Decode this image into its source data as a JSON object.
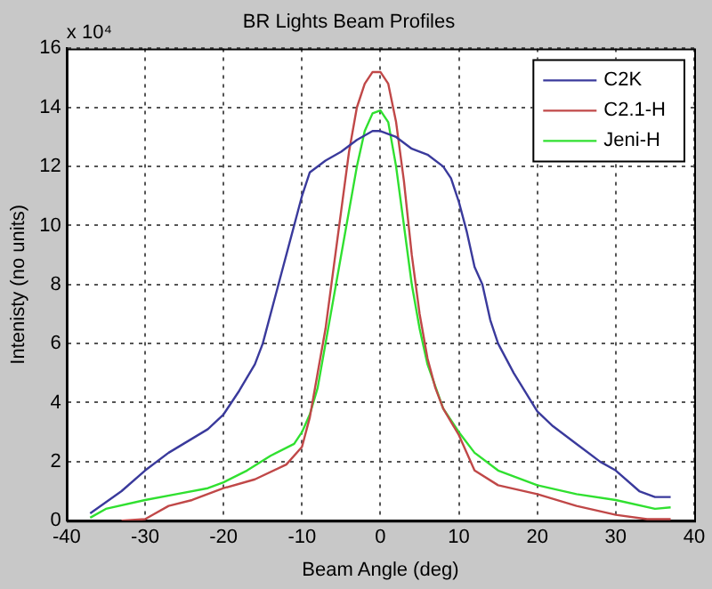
{
  "chart_data": {
    "type": "line",
    "title": "BR Lights Beam Profiles",
    "xlabel": "Beam Angle (deg)",
    "ylabel": "Intenisty (no units)",
    "annotations": [
      "x 10⁴"
    ],
    "xlim": [
      -40,
      40
    ],
    "xticks": [
      -40,
      -30,
      -20,
      -10,
      0,
      10,
      20,
      30,
      40
    ],
    "ylim": [
      0,
      16
    ],
    "yticks": [
      0,
      2,
      4,
      6,
      8,
      10,
      12,
      14,
      16
    ],
    "grid": true,
    "legend": "top right",
    "marker": "none",
    "line_style": "solid",
    "series": [
      {
        "name": "C2K",
        "color": "#3a3a9c",
        "x": [
          -37,
          -33,
          -30,
          -27,
          -22,
          -20,
          -18,
          -16,
          -15,
          -13,
          -11,
          -10,
          -9,
          -7,
          -5,
          -3,
          -1,
          0,
          2,
          4,
          6,
          8,
          9,
          10,
          11,
          12,
          13,
          14,
          15,
          17,
          20,
          22,
          25,
          28,
          30,
          33,
          35,
          37
        ],
        "values": [
          0.25,
          1.0,
          1.7,
          2.3,
          3.1,
          3.6,
          4.4,
          5.3,
          6.0,
          8.0,
          10.0,
          11.0,
          11.8,
          12.2,
          12.5,
          12.9,
          13.2,
          13.2,
          13.0,
          12.6,
          12.4,
          12.0,
          11.6,
          10.8,
          9.8,
          8.6,
          8.0,
          6.8,
          6.0,
          5.0,
          3.7,
          3.2,
          2.6,
          2.0,
          1.7,
          1.0,
          0.8,
          0.8
        ]
      },
      {
        "name": "C2.1-H",
        "color": "#c04848",
        "x": [
          -33,
          -30,
          -29,
          -27,
          -24,
          -20,
          -16,
          -12,
          -10,
          -9,
          -8,
          -7,
          -6,
          -5,
          -4,
          -3,
          -2,
          -1,
          0,
          1,
          2,
          3,
          4,
          5,
          6,
          7,
          8,
          10,
          12,
          15,
          20,
          25,
          30,
          34,
          37
        ],
        "values": [
          0.0,
          0.05,
          0.2,
          0.5,
          0.7,
          1.1,
          1.4,
          1.9,
          2.5,
          3.5,
          5.0,
          6.5,
          8.5,
          10.5,
          12.5,
          14.0,
          14.8,
          15.2,
          15.2,
          14.8,
          13.5,
          11.5,
          9.0,
          7.0,
          5.5,
          4.5,
          3.8,
          2.9,
          1.7,
          1.2,
          0.9,
          0.5,
          0.2,
          0.05,
          0.05
        ]
      },
      {
        "name": "Jeni-H",
        "color": "#30e030",
        "x": [
          -37,
          -35,
          -30,
          -26,
          -22,
          -20,
          -17,
          -14,
          -11,
          -10,
          -9,
          -8,
          -7,
          -6,
          -5,
          -4,
          -3,
          -2,
          -1,
          0,
          1,
          2,
          3,
          4,
          5,
          6,
          8,
          10,
          12,
          15,
          20,
          25,
          30,
          35,
          37
        ],
        "values": [
          0.1,
          0.4,
          0.7,
          0.9,
          1.1,
          1.3,
          1.7,
          2.2,
          2.6,
          3.0,
          3.6,
          4.5,
          6.0,
          7.5,
          9.0,
          10.5,
          12.0,
          13.2,
          13.8,
          13.9,
          13.5,
          12.0,
          10.0,
          8.0,
          6.5,
          5.3,
          3.8,
          3.0,
          2.3,
          1.7,
          1.2,
          0.9,
          0.7,
          0.4,
          0.45
        ]
      }
    ]
  }
}
